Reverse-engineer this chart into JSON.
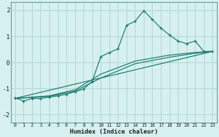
{
  "xlabel": "Humidex (Indice chaleur)",
  "background_color": "#d6f0ef",
  "grid_color": "#b0d8d5",
  "line_color": "#1a7a6e",
  "xlim": [
    -0.5,
    23.5
  ],
  "ylim": [
    -2.3,
    2.3
  ],
  "xticks": [
    0,
    1,
    2,
    3,
    4,
    5,
    6,
    7,
    8,
    9,
    10,
    11,
    12,
    13,
    14,
    15,
    16,
    17,
    18,
    19,
    20,
    21,
    22,
    23
  ],
  "yticks": [
    -2,
    -1,
    0,
    1,
    2
  ],
  "series": [
    [
      0,
      -1.35
    ],
    [
      1,
      -1.48
    ],
    [
      2,
      -1.38
    ],
    [
      3,
      -1.38
    ],
    [
      4,
      -1.33
    ],
    [
      5,
      -1.28
    ],
    [
      6,
      -1.22
    ],
    [
      7,
      -1.12
    ],
    [
      8,
      -1.02
    ],
    [
      9,
      -0.72
    ],
    [
      10,
      0.22
    ],
    [
      11,
      0.38
    ],
    [
      12,
      0.52
    ],
    [
      13,
      1.42
    ],
    [
      14,
      1.58
    ],
    [
      15,
      1.98
    ],
    [
      16,
      1.65
    ],
    [
      17,
      1.32
    ],
    [
      18,
      1.05
    ],
    [
      19,
      0.82
    ],
    [
      20,
      0.72
    ],
    [
      21,
      0.82
    ],
    [
      22,
      0.42
    ],
    [
      23,
      0.42
    ]
  ],
  "line2": [
    [
      0,
      -1.38
    ],
    [
      23,
      0.42
    ]
  ],
  "line3": [
    [
      0,
      -1.38
    ],
    [
      4,
      -1.3
    ],
    [
      7,
      -1.1
    ],
    [
      10,
      -0.6
    ],
    [
      14,
      -0.05
    ],
    [
      18,
      0.2
    ],
    [
      21,
      0.35
    ],
    [
      23,
      0.42
    ]
  ],
  "line4": [
    [
      0,
      -1.38
    ],
    [
      4,
      -1.28
    ],
    [
      7,
      -1.05
    ],
    [
      10,
      -0.45
    ],
    [
      14,
      0.05
    ],
    [
      18,
      0.28
    ],
    [
      21,
      0.38
    ],
    [
      23,
      0.42
    ]
  ]
}
